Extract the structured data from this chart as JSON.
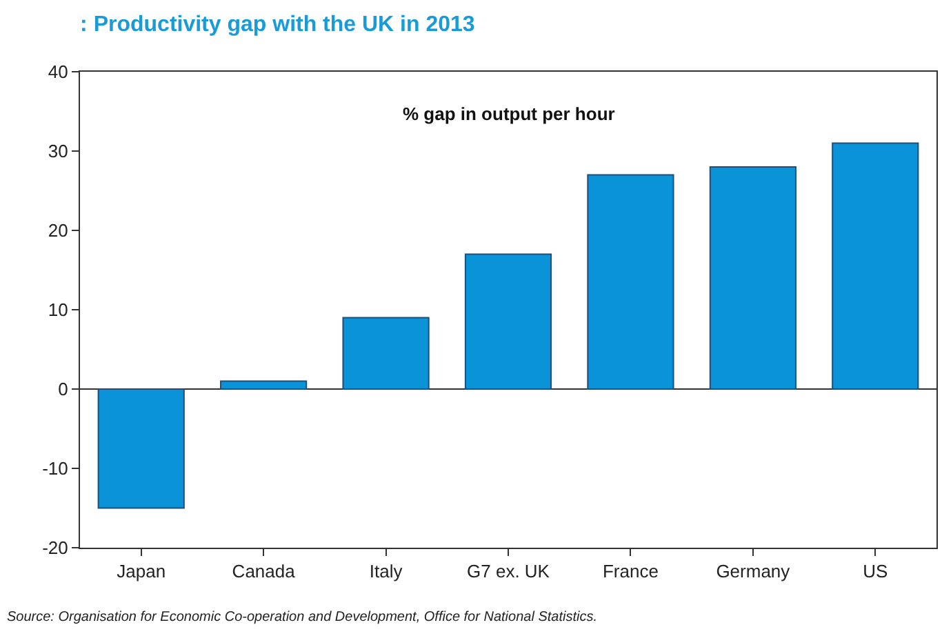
{
  "chart_data": {
    "type": "bar",
    "title": ": Productivity gap with the UK in 2013",
    "subtitle": "% gap in output per hour",
    "categories": [
      "Japan",
      "Canada",
      "Italy",
      "G7 ex. UK",
      "France",
      "Germany",
      "US"
    ],
    "values": [
      -15,
      1,
      9,
      17,
      27,
      28,
      31
    ],
    "color": "#0a93d6",
    "ylim": [
      -20,
      40
    ],
    "yticks": [
      -20,
      -10,
      0,
      10,
      20,
      30,
      40
    ],
    "annotations": [
      "Source: Organisation for Economic Co-operation and Development, Office for National Statistics."
    ]
  }
}
